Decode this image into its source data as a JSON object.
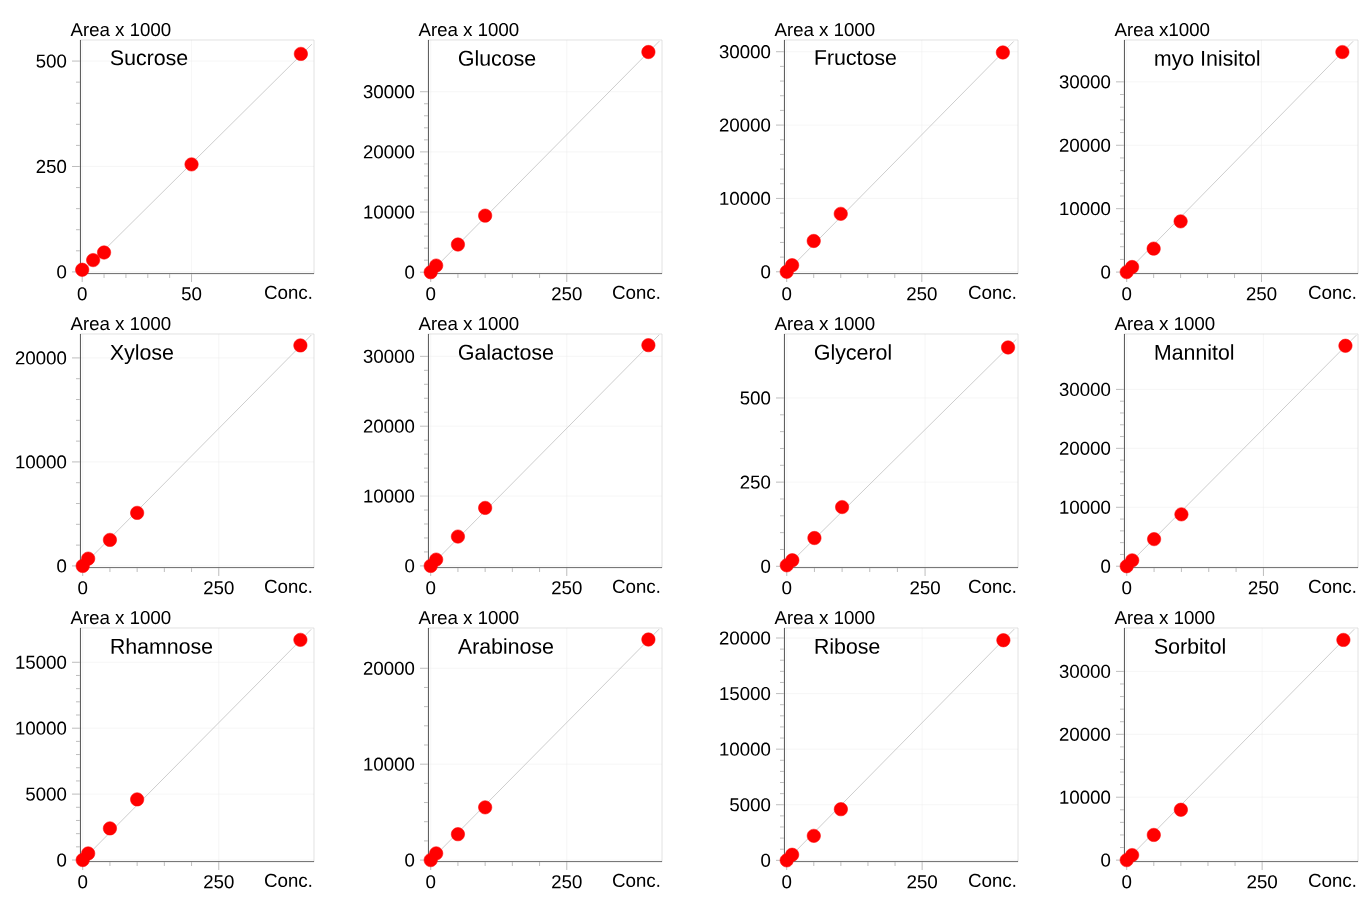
{
  "chart_data": [
    {
      "type": "scatter",
      "title": "Sucrose",
      "xlabel": "Conc.",
      "ylabel": "Area x 1000",
      "xlim": [
        -1,
        106
      ],
      "ylim": [
        -5,
        550
      ],
      "xticks": [
        0,
        50
      ],
      "yticks": [
        0,
        250,
        500
      ],
      "grid": true,
      "series": [
        {
          "color": "#ff0000",
          "marker": "circle",
          "x": [
            0,
            5,
            10,
            50,
            100
          ],
          "values": [
            5,
            28,
            46,
            255,
            517
          ]
        },
        {
          "type": "line",
          "color": "#c0c0c0",
          "x": [
            0,
            105
          ],
          "values": [
            0,
            540
          ]
        }
      ]
    },
    {
      "type": "scatter",
      "title": "Glucose",
      "xlabel": "Conc.",
      "ylabel": "Area x 1000",
      "xlim": [
        -5,
        425
      ],
      "ylim": [
        -300,
        38600
      ],
      "xticks": [
        0,
        250
      ],
      "yticks": [
        0,
        10000,
        20000,
        30000
      ],
      "grid": true,
      "series": [
        {
          "color": "#ff0000",
          "marker": "circle",
          "x": [
            0,
            10,
            50,
            100,
            400
          ],
          "values": [
            0,
            1100,
            4600,
            9400,
            36600
          ]
        },
        {
          "type": "line",
          "color": "#c0c0c0",
          "x": [
            0,
            420
          ],
          "values": [
            0,
            38400
          ]
        }
      ]
    },
    {
      "type": "scatter",
      "title": "Fructose",
      "xlabel": "Conc.",
      "ylabel": "Area x 1000",
      "xlim": [
        -5,
        428
      ],
      "ylim": [
        -300,
        31600
      ],
      "xticks": [
        0,
        250
      ],
      "yticks": [
        0,
        10000,
        20000,
        30000
      ],
      "grid": true,
      "series": [
        {
          "color": "#ff0000",
          "marker": "circle",
          "x": [
            0,
            10,
            50,
            100,
            400
          ],
          "values": [
            0,
            900,
            4200,
            7900,
            29900
          ]
        },
        {
          "type": "line",
          "color": "#c0c0c0",
          "x": [
            0,
            420
          ],
          "values": [
            0,
            31400
          ]
        }
      ]
    },
    {
      "type": "scatter",
      "title": "myo Inisitol",
      "xlabel": "Conc.",
      "ylabel": "Area x1000",
      "xlim": [
        -5,
        429
      ],
      "ylim": [
        -300,
        36600
      ],
      "xticks": [
        0,
        250
      ],
      "yticks": [
        0,
        10000,
        20000,
        30000
      ],
      "grid": true,
      "series": [
        {
          "color": "#ff0000",
          "marker": "circle",
          "x": [
            0,
            10,
            50,
            100,
            400
          ],
          "values": [
            0,
            800,
            3700,
            8000,
            34700
          ]
        },
        {
          "type": "line",
          "color": "#c0c0c0",
          "x": [
            0,
            420
          ],
          "values": [
            0,
            36400
          ]
        }
      ]
    },
    {
      "type": "scatter",
      "title": "Xylose",
      "xlabel": "Conc.",
      "ylabel": "Area x 1000",
      "xlim": [
        -5,
        425
      ],
      "ylim": [
        -200,
        22300
      ],
      "xticks": [
        0,
        250
      ],
      "yticks": [
        0,
        10000,
        20000
      ],
      "grid": true,
      "series": [
        {
          "color": "#ff0000",
          "marker": "circle",
          "x": [
            0,
            10,
            50,
            100,
            400
          ],
          "values": [
            0,
            700,
            2500,
            5100,
            21200
          ]
        },
        {
          "type": "line",
          "color": "#c0c0c0",
          "x": [
            0,
            420
          ],
          "values": [
            0,
            22200
          ]
        }
      ]
    },
    {
      "type": "scatter",
      "title": "Galactose",
      "xlabel": "Conc.",
      "ylabel": "Area x 1000",
      "xlim": [
        -5,
        425
      ],
      "ylim": [
        -300,
        33200
      ],
      "xticks": [
        0,
        250
      ],
      "yticks": [
        0,
        10000,
        20000,
        30000
      ],
      "grid": true,
      "series": [
        {
          "color": "#ff0000",
          "marker": "circle",
          "x": [
            0,
            10,
            50,
            100,
            400
          ],
          "values": [
            0,
            900,
            4200,
            8300,
            31600
          ]
        },
        {
          "type": "line",
          "color": "#c0c0c0",
          "x": [
            0,
            420
          ],
          "values": [
            0,
            33100
          ]
        }
      ]
    },
    {
      "type": "scatter",
      "title": "Glycerol",
      "xlabel": "Conc.",
      "ylabel": "Area x 1000",
      "xlim": [
        -5,
        418
      ],
      "ylim": [
        -5,
        690
      ],
      "xticks": [
        0,
        250
      ],
      "yticks": [
        0,
        250,
        500
      ],
      "grid": true,
      "series": [
        {
          "color": "#ff0000",
          "marker": "circle",
          "x": [
            0,
            10,
            50,
            100,
            400
          ],
          "values": [
            3,
            18,
            84,
            176,
            650
          ]
        },
        {
          "type": "line",
          "color": "#c0c0c0",
          "x": [
            0,
            415
          ],
          "values": [
            0,
            674
          ]
        }
      ]
    },
    {
      "type": "scatter",
      "title": "Mannitol",
      "xlabel": "Conc.",
      "ylabel": "Area x 1000",
      "xlim": [
        -5,
        423
      ],
      "ylim": [
        -300,
        39400
      ],
      "xticks": [
        0,
        250
      ],
      "yticks": [
        0,
        10000,
        20000,
        30000
      ],
      "grid": true,
      "series": [
        {
          "color": "#ff0000",
          "marker": "circle",
          "x": [
            0,
            10,
            50,
            100,
            400
          ],
          "values": [
            0,
            1000,
            4600,
            8800,
            37400
          ]
        },
        {
          "type": "line",
          "color": "#c0c0c0",
          "x": [
            0,
            420
          ],
          "values": [
            0,
            39200
          ]
        }
      ]
    },
    {
      "type": "scatter",
      "title": "Rhamnose",
      "xlabel": "Conc.",
      "ylabel": "Area x 1000",
      "xlim": [
        -5,
        425
      ],
      "ylim": [
        -150,
        17600
      ],
      "xticks": [
        0,
        250
      ],
      "yticks": [
        0,
        5000,
        10000,
        15000
      ],
      "grid": true,
      "series": [
        {
          "color": "#ff0000",
          "marker": "circle",
          "x": [
            0,
            10,
            50,
            100,
            400
          ],
          "values": [
            0,
            500,
            2400,
            4600,
            16700
          ]
        },
        {
          "type": "line",
          "color": "#c0c0c0",
          "x": [
            0,
            420
          ],
          "values": [
            0,
            17500
          ]
        }
      ]
    },
    {
      "type": "scatter",
      "title": "Arabinose",
      "xlabel": "Conc.",
      "ylabel": "Area x 1000",
      "xlim": [
        -5,
        425
      ],
      "ylim": [
        -200,
        24200
      ],
      "xticks": [
        0,
        250
      ],
      "yticks": [
        0,
        10000,
        20000
      ],
      "grid": true,
      "series": [
        {
          "color": "#ff0000",
          "marker": "circle",
          "x": [
            0,
            10,
            50,
            100,
            400
          ],
          "values": [
            0,
            700,
            2700,
            5500,
            23000
          ]
        },
        {
          "type": "line",
          "color": "#c0c0c0",
          "x": [
            0,
            420
          ],
          "values": [
            0,
            24100
          ]
        }
      ]
    },
    {
      "type": "scatter",
      "title": "Ribose",
      "xlabel": "Conc.",
      "ylabel": "Area x 1000",
      "xlim": [
        -5,
        427
      ],
      "ylim": [
        -150,
        20900
      ],
      "xticks": [
        0,
        250
      ],
      "yticks": [
        0,
        5000,
        10000,
        15000,
        20000
      ],
      "grid": true,
      "series": [
        {
          "color": "#ff0000",
          "marker": "circle",
          "x": [
            0,
            10,
            50,
            100,
            400
          ],
          "values": [
            0,
            500,
            2200,
            4600,
            19800
          ]
        },
        {
          "type": "line",
          "color": "#c0c0c0",
          "x": [
            0,
            420
          ],
          "values": [
            0,
            20800
          ]
        }
      ]
    },
    {
      "type": "scatter",
      "title": "Sorbitol",
      "xlabel": "Conc.",
      "ylabel": "Area x 1000",
      "xlim": [
        -5,
        427
      ],
      "ylim": [
        -300,
        36900
      ],
      "xticks": [
        0,
        250
      ],
      "yticks": [
        0,
        10000,
        20000,
        30000
      ],
      "grid": true,
      "series": [
        {
          "color": "#ff0000",
          "marker": "circle",
          "x": [
            0,
            10,
            50,
            100,
            400
          ],
          "values": [
            0,
            800,
            4000,
            8000,
            35000
          ]
        },
        {
          "type": "line",
          "color": "#c0c0c0",
          "x": [
            0,
            420
          ],
          "values": [
            0,
            36700
          ]
        }
      ]
    }
  ]
}
